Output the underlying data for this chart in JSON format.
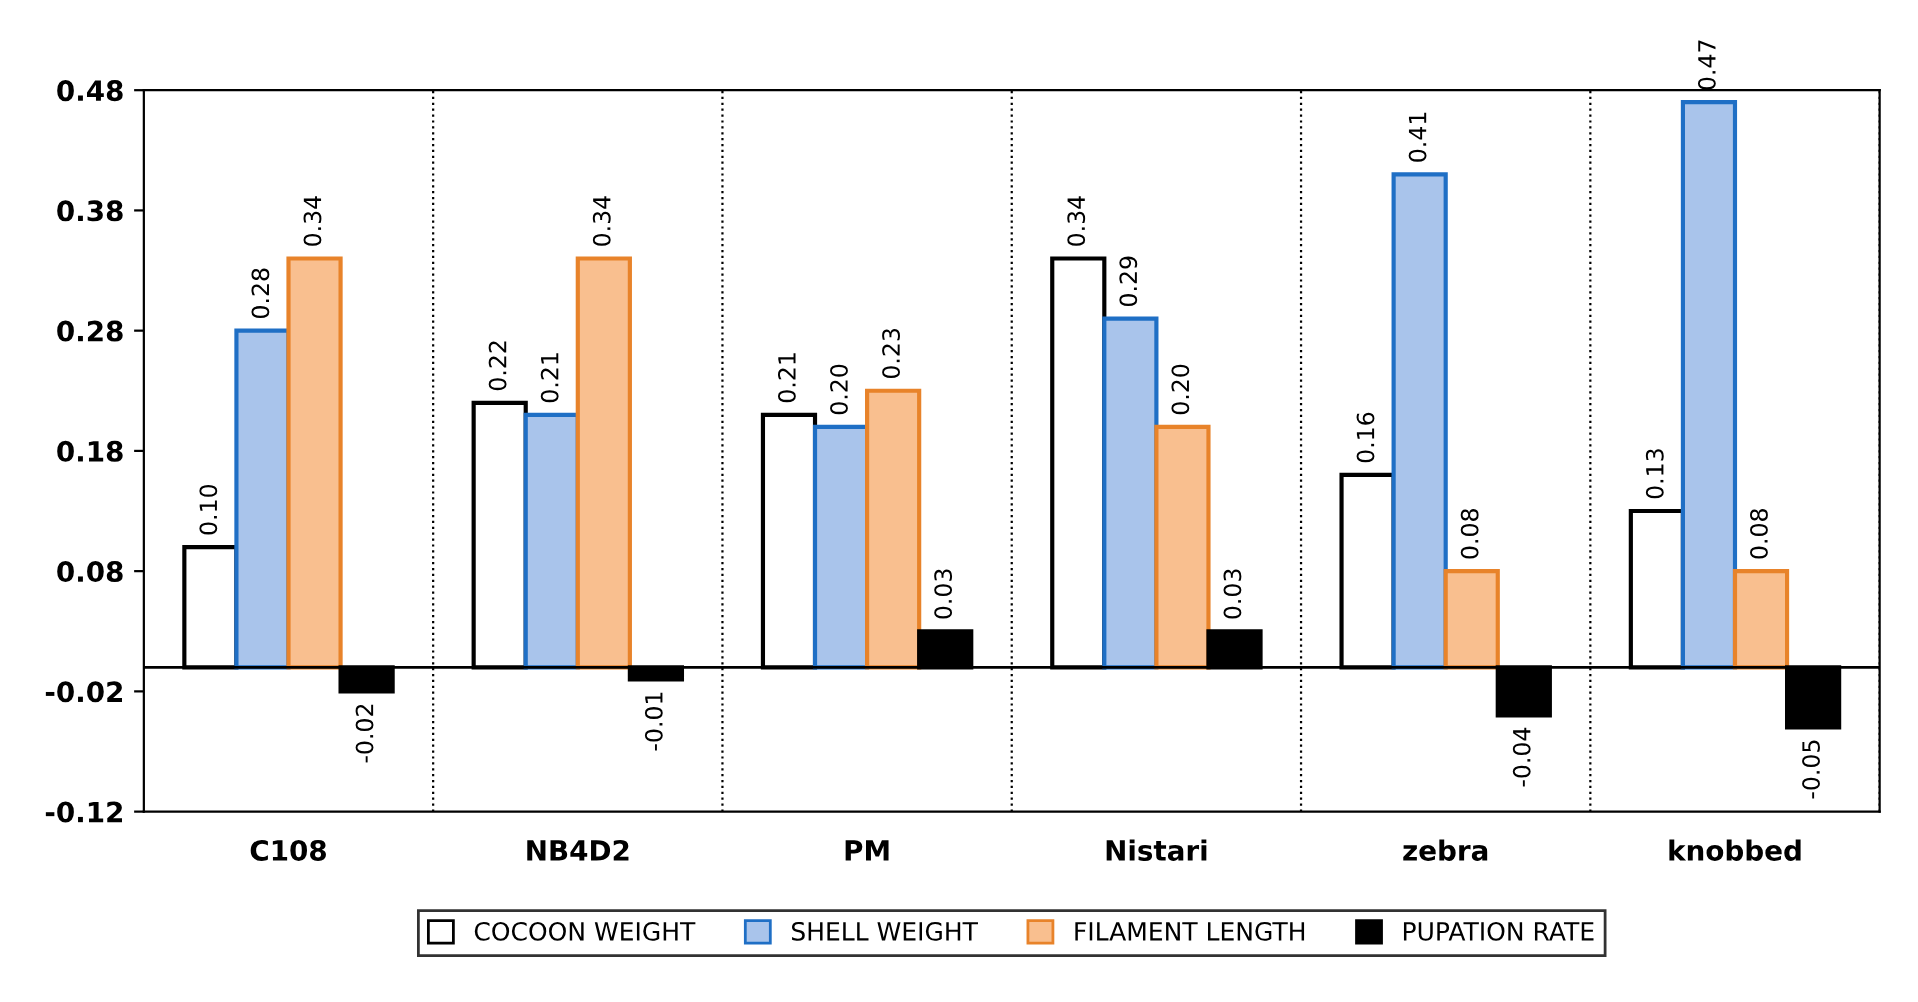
{
  "chart_data": {
    "type": "bar",
    "categories": [
      "C108",
      "NB4D2",
      "PM",
      "Nistari",
      "zebra",
      "knobbed"
    ],
    "series": [
      {
        "name": "COCOON WEIGHT",
        "color": "#ffffff",
        "values": [
          0.1,
          0.22,
          0.21,
          0.34,
          0.16,
          0.13
        ],
        "value_labels": [
          "0.10",
          "0.22",
          "0.21",
          "0.34",
          "0.16",
          "0.13"
        ]
      },
      {
        "name": "SHELL WEIGHT",
        "color": "#a9c4eb",
        "values": [
          0.28,
          0.21,
          0.2,
          0.29,
          0.41,
          0.47
        ],
        "value_labels": [
          "0.28",
          "0.21",
          "0.20",
          "0.29",
          "0.41",
          "0.47"
        ]
      },
      {
        "name": "FILAMENT LENGTH",
        "color": "#f9bf8f",
        "values": [
          0.34,
          0.34,
          0.23,
          0.2,
          0.08,
          0.08
        ],
        "value_labels": [
          "0.34",
          "0.34",
          "0.23",
          "0.20",
          "0.08",
          "0.08"
        ]
      },
      {
        "name": "PUPATION RATE",
        "color": "#000000",
        "values": [
          -0.02,
          -0.01,
          0.03,
          0.03,
          -0.04,
          -0.05
        ],
        "value_labels": [
          "-0.02",
          "-0.01",
          "0.03",
          "0.03",
          "-0.04",
          "-0.05"
        ]
      }
    ],
    "ylim": [
      -0.12,
      0.48
    ],
    "yticks": [
      {
        "value": -0.12,
        "label": "-0.12"
      },
      {
        "value": -0.02,
        "label": "-0.02"
      },
      0.08,
      0.18,
      0.28,
      0.38,
      0.48
    ],
    "grid": "x",
    "legend": "bottom"
  }
}
